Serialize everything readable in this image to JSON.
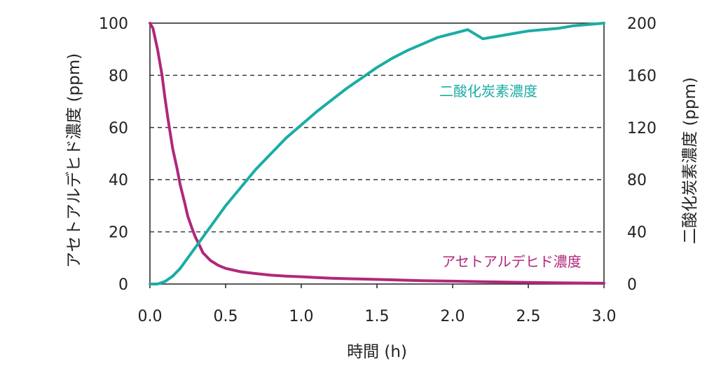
{
  "chart_data": {
    "type": "line",
    "title": "",
    "xlabel": "時間 (h)",
    "ylabel_left": "アセトアルデヒド濃度 (ppm)",
    "ylabel_right": "二酸化炭素濃度 (ppm)",
    "xlim": [
      0,
      3.0
    ],
    "ylim_left": [
      0,
      100
    ],
    "ylim_right": [
      0,
      200
    ],
    "x_ticks": [
      "0.0",
      "0.5",
      "1.0",
      "1.5",
      "2.0",
      "2.5",
      "3.0"
    ],
    "y_left_ticks": [
      "0",
      "20",
      "40",
      "60",
      "80",
      "100"
    ],
    "y_right_ticks": [
      "0",
      "40",
      "80",
      "120",
      "160",
      "200"
    ],
    "grid": "horizontal dashed",
    "series": [
      {
        "name": "アセトアルデヒド濃度",
        "axis": "left",
        "color": "#b0287a",
        "x": [
          0.0,
          0.02,
          0.05,
          0.08,
          0.1,
          0.12,
          0.15,
          0.18,
          0.2,
          0.23,
          0.25,
          0.28,
          0.3,
          0.33,
          0.35,
          0.4,
          0.45,
          0.5,
          0.6,
          0.7,
          0.8,
          0.9,
          1.0,
          1.1,
          1.2,
          1.4,
          1.6,
          1.8,
          2.0,
          2.2,
          2.5,
          2.8,
          3.0
        ],
        "y": [
          100,
          98,
          90,
          80,
          71,
          63,
          52,
          44,
          38,
          31,
          26,
          21,
          18,
          14.5,
          12,
          9,
          7.2,
          6,
          4.7,
          4,
          3.4,
          3,
          2.8,
          2.5,
          2.2,
          1.9,
          1.6,
          1.3,
          1.1,
          0.9,
          0.6,
          0.4,
          0.3
        ]
      },
      {
        "name": "二酸化炭素濃度",
        "axis": "right",
        "color": "#1aada4",
        "x": [
          0.0,
          0.05,
          0.1,
          0.15,
          0.2,
          0.25,
          0.3,
          0.35,
          0.4,
          0.5,
          0.6,
          0.7,
          0.8,
          0.9,
          1.0,
          1.1,
          1.2,
          1.3,
          1.4,
          1.5,
          1.6,
          1.7,
          1.8,
          1.9,
          2.0,
          2.1,
          2.2,
          2.3,
          2.4,
          2.5,
          2.6,
          2.7,
          2.8,
          2.9,
          3.0
        ],
        "y": [
          0,
          0,
          2,
          6,
          12,
          20,
          28,
          36,
          44,
          60,
          74,
          88,
          100,
          112,
          122,
          132,
          141,
          150,
          158,
          166,
          173,
          179,
          184,
          189,
          192,
          195,
          188,
          190,
          192,
          194,
          195,
          196,
          198,
          199,
          200
        ]
      }
    ]
  }
}
